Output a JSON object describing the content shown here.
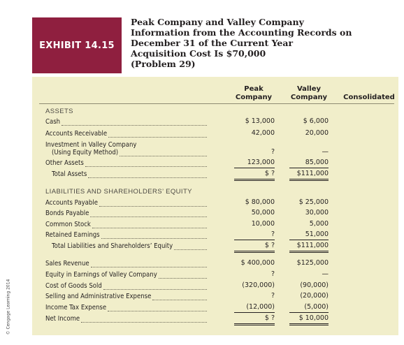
{
  "exhibit": {
    "label": "EXHIBIT 14.15"
  },
  "title": {
    "lines": [
      "Peak Company and Valley Company",
      "Information from the Accounting Records on",
      "December 31 of the Current Year",
      "Acquisition Cost Is $70,000",
      "(Problem 29)"
    ]
  },
  "columns": {
    "peak": [
      "Peak",
      "Company"
    ],
    "valley": [
      "Valley",
      "Company"
    ],
    "consolidated": "Consolidated"
  },
  "sections": {
    "assets": "ASSETS",
    "liabilities": "LIABILITIES AND SHAREHOLDERS’ EQUITY"
  },
  "rows": [
    {
      "label": "Cash",
      "label2": "",
      "peak": "$  13,000",
      "valley": "$  6,000",
      "peak_rule": "",
      "valley_rule": ""
    },
    {
      "label": "Accounts Receivable",
      "label2": "",
      "peak": "42,000",
      "valley": "20,000",
      "peak_rule": "",
      "valley_rule": ""
    },
    {
      "label": "Investment in Valley Company",
      "label2": "(Using Equity Method)",
      "peak": "?",
      "valley": "—",
      "peak_rule": "",
      "valley_rule": ""
    },
    {
      "label": "Other Assets",
      "label2": "",
      "peak": "123,000",
      "valley": "85,000",
      "peak_rule": "single",
      "valley_rule": "single"
    },
    {
      "label": "Total Assets",
      "label2": "",
      "peak": "$           ?",
      "valley": "$111,000",
      "peak_rule": "double",
      "valley_rule": "double"
    },
    {
      "label": "Accounts Payable",
      "label2": "",
      "peak": "$  80,000",
      "valley": "$ 25,000",
      "peak_rule": "",
      "valley_rule": ""
    },
    {
      "label": "Bonds Payable",
      "label2": "",
      "peak": "50,000",
      "valley": "30,000",
      "peak_rule": "",
      "valley_rule": ""
    },
    {
      "label": "Common Stock",
      "label2": "",
      "peak": "10,000",
      "valley": "5,000",
      "peak_rule": "",
      "valley_rule": ""
    },
    {
      "label": "Retained Earnings",
      "label2": "",
      "peak": "?",
      "valley": "51,000",
      "peak_rule": "single",
      "valley_rule": "single"
    },
    {
      "label": "Total Liabilities and Shareholders’ Equity",
      "label2": "",
      "peak": "$           ?",
      "valley": "$111,000",
      "peak_rule": "double",
      "valley_rule": "double"
    },
    {
      "label": "Sales Revenue",
      "label2": "",
      "peak": "$ 400,000",
      "valley": "$125,000",
      "peak_rule": "",
      "valley_rule": ""
    },
    {
      "label": "Equity in Earnings of Valley Company",
      "label2": "",
      "peak": "?",
      "valley": "—",
      "peak_rule": "",
      "valley_rule": ""
    },
    {
      "label": "Cost of Goods Sold",
      "label2": "",
      "peak": "(320,000)",
      "valley": "(90,000)",
      "peak_rule": "",
      "valley_rule": ""
    },
    {
      "label": "Selling and Administrative Expense",
      "label2": "",
      "peak": "?",
      "valley": "(20,000)",
      "peak_rule": "",
      "valley_rule": ""
    },
    {
      "label": "Income Tax Expense",
      "label2": "",
      "peak": "(12,000)",
      "valley": "(5,000)",
      "peak_rule": "single",
      "valley_rule": "single"
    },
    {
      "label": "Net Income",
      "label2": "",
      "peak": "$           ?",
      "valley": "$ 10,000",
      "peak_rule": "double",
      "valley_rule": "double"
    }
  ],
  "credit": "© Cengage Learning 2014"
}
